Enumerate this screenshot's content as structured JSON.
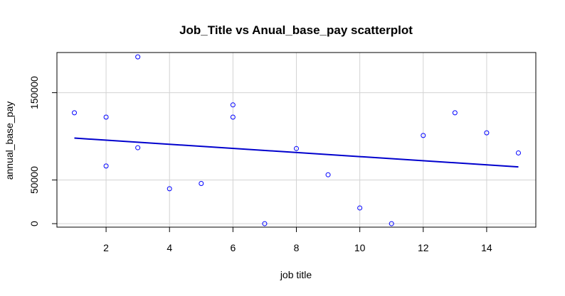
{
  "chart_data": {
    "type": "scatter",
    "title": "Job_Title vs Anual_base_pay scatterplot",
    "xlabel": "job title",
    "ylabel": "annual_base_pay",
    "xlim": [
      0.45,
      15.55
    ],
    "ylim": [
      -4000,
      196000
    ],
    "xticks": [
      2,
      4,
      6,
      8,
      10,
      12,
      14
    ],
    "yticks": [
      0,
      50000,
      150000
    ],
    "ytick_labels": [
      "0",
      "50000",
      "150000"
    ],
    "grid": true,
    "colors": {
      "points": "#0000ff",
      "line": "#0000cd",
      "grid": "#d3d3d3",
      "box": "#000000"
    },
    "points": [
      {
        "x": 1,
        "y": 127000
      },
      {
        "x": 2,
        "y": 122000
      },
      {
        "x": 2,
        "y": 66000
      },
      {
        "x": 3,
        "y": 191000
      },
      {
        "x": 3,
        "y": 87000
      },
      {
        "x": 4,
        "y": 40000
      },
      {
        "x": 5,
        "y": 46000
      },
      {
        "x": 6,
        "y": 136000
      },
      {
        "x": 6,
        "y": 122000
      },
      {
        "x": 7,
        "y": 0
      },
      {
        "x": 8,
        "y": 86000
      },
      {
        "x": 9,
        "y": 56000
      },
      {
        "x": 10,
        "y": 18000
      },
      {
        "x": 11,
        "y": 0
      },
      {
        "x": 12,
        "y": 101000
      },
      {
        "x": 13,
        "y": 127000
      },
      {
        "x": 14,
        "y": 104000
      },
      {
        "x": 15,
        "y": 81000
      }
    ],
    "regression_line": {
      "x1": 1,
      "y1": 98000,
      "x2": 15,
      "y2": 65000
    }
  }
}
